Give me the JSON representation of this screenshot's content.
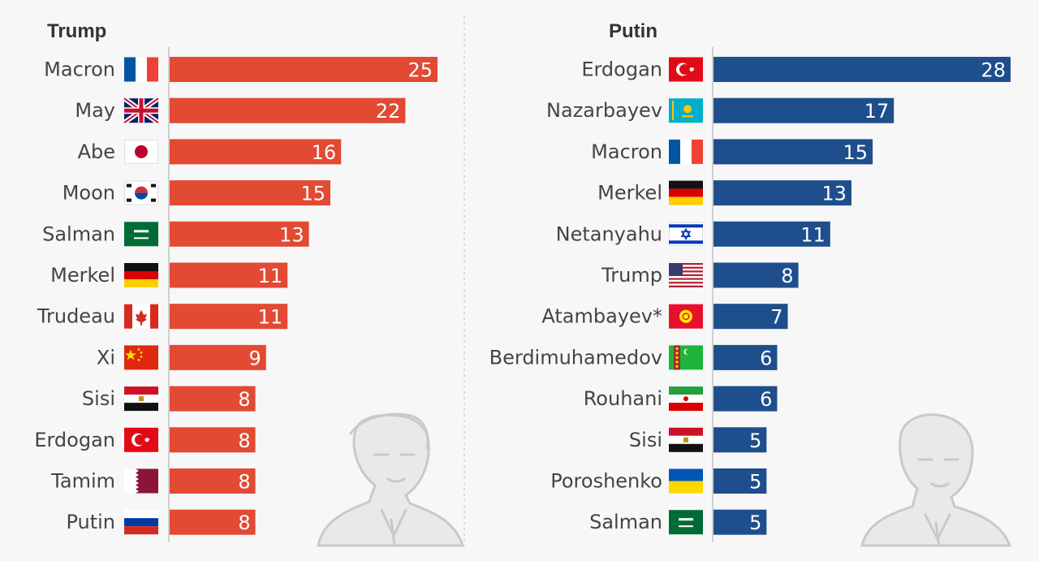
{
  "chart_data": [
    {
      "type": "bar",
      "title": "Trump",
      "bar_color": "#e24a33",
      "categories": [
        "Macron",
        "May",
        "Abe",
        "Moon",
        "Salman",
        "Merkel",
        "Trudeau",
        "Xi",
        "Sisi",
        "Erdogan",
        "Tamim",
        "Putin"
      ],
      "values": [
        25,
        22,
        16,
        15,
        13,
        11,
        11,
        9,
        8,
        8,
        8,
        8
      ],
      "flags": [
        "france",
        "uk",
        "japan",
        "south-korea",
        "saudi-arabia",
        "germany",
        "canada",
        "china",
        "egypt",
        "turkey",
        "qatar",
        "russia"
      ],
      "grid": false
    },
    {
      "type": "bar",
      "title": "Putin",
      "bar_color": "#1f4e8c",
      "categories": [
        "Erdogan",
        "Nazarbayev",
        "Macron",
        "Merkel",
        "Netanyahu",
        "Trump",
        "Atambayev*",
        "Berdimuhamedov",
        "Rouhani",
        "Sisi",
        "Poroshenko",
        "Salman"
      ],
      "values": [
        28,
        17,
        15,
        13,
        11,
        8,
        7,
        6,
        6,
        5,
        5,
        5
      ],
      "flags": [
        "turkey",
        "kazakhstan",
        "france",
        "germany",
        "israel",
        "usa",
        "kyrgyzstan",
        "turkmenistan",
        "iran",
        "egypt",
        "ukraine",
        "saudi-arabia"
      ],
      "grid": false
    }
  ]
}
